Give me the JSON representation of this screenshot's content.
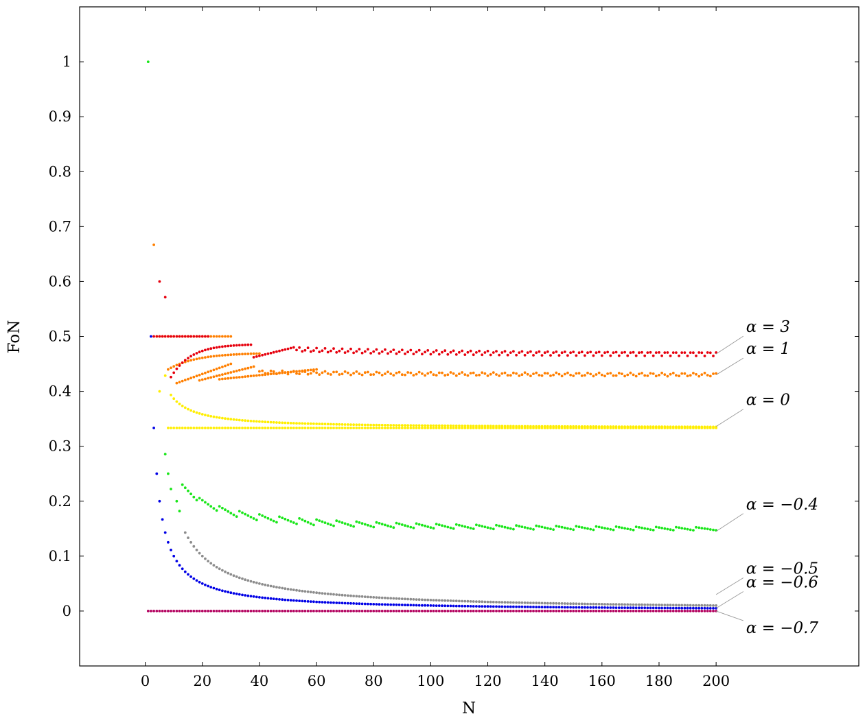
{
  "chart_data": {
    "type": "scatter",
    "xlabel": "N",
    "ylabel": "FoN",
    "xlim": [
      -23,
      250
    ],
    "ylim": [
      -0.1,
      1.1
    ],
    "xticks": [
      0,
      20,
      40,
      60,
      80,
      100,
      120,
      140,
      160,
      180,
      200
    ],
    "yticks": [
      0,
      0.1,
      0.2,
      0.3,
      0.4,
      0.5,
      0.6,
      0.7,
      0.8,
      0.9,
      1
    ],
    "x_range": [
      1,
      200
    ],
    "grid": false,
    "series": [
      {
        "color": "#e6000d",
        "end_value": 0.468,
        "points": [
          [
            5,
            0.6
          ],
          [
            7,
            0.571
          ],
          [
            3,
            0.5
          ],
          [
            5,
            0.5
          ],
          [
            10,
            0.5
          ],
          [
            15,
            0.5
          ],
          [
            20,
            0.5
          ],
          [
            22,
            0.5
          ],
          [
            17,
            0.47
          ],
          [
            37,
            0.486
          ],
          [
            38,
            0.462
          ],
          [
            52,
            0.48
          ],
          [
            53,
            0.464
          ],
          [
            100,
            0.47
          ],
          [
            150,
            0.469
          ],
          [
            200,
            0.468
          ]
        ]
      },
      {
        "color": "#ff7f00",
        "end_value": 0.43,
        "points": [
          [
            3,
            0.667
          ],
          [
            5,
            0.5
          ],
          [
            8,
            0.5
          ],
          [
            12,
            0.455
          ],
          [
            15,
            0.46
          ],
          [
            20,
            0.44
          ],
          [
            26,
            0.42
          ],
          [
            30,
            0.45
          ],
          [
            45,
            0.44
          ],
          [
            60,
            0.44
          ],
          [
            100,
            0.432
          ],
          [
            150,
            0.43
          ],
          [
            200,
            0.43
          ]
        ]
      },
      {
        "color": "#ffee00",
        "end_value": 0.336,
        "points": [
          [
            4,
            0.5
          ],
          [
            5,
            0.4
          ],
          [
            7,
            0.43
          ],
          [
            10,
            0.39
          ],
          [
            12,
            0.38
          ],
          [
            20,
            0.36
          ],
          [
            30,
            0.35
          ],
          [
            9,
            0.333
          ],
          [
            20,
            0.333
          ],
          [
            50,
            0.34
          ],
          [
            100,
            0.336
          ],
          [
            150,
            0.336
          ],
          [
            200,
            0.336
          ]
        ]
      },
      {
        "color": "#19e619",
        "end_value": 0.145,
        "points": [
          [
            1,
            1.0
          ],
          [
            7,
            0.286
          ],
          [
            8,
            0.25
          ],
          [
            9,
            0.222
          ],
          [
            13,
            0.231
          ],
          [
            19,
            0.2
          ],
          [
            26,
            0.185
          ],
          [
            33,
            0.152
          ],
          [
            40,
            0.175
          ],
          [
            60,
            0.165
          ],
          [
            100,
            0.155
          ],
          [
            150,
            0.15
          ],
          [
            200,
            0.145
          ]
        ]
      },
      {
        "color": "#8c8c8c",
        "end_value": 0.03,
        "points": [
          [
            14,
            0.143
          ],
          [
            20,
            0.1
          ],
          [
            37,
            0.054
          ],
          [
            38,
            0.079
          ],
          [
            73,
            0.041
          ],
          [
            74,
            0.054
          ],
          [
            121,
            0.033
          ],
          [
            122,
            0.041
          ],
          [
            181,
            0.027
          ],
          [
            182,
            0.033
          ],
          [
            200,
            0.03
          ]
        ]
      },
      {
        "color": "#0000e6",
        "end_value": 0.005,
        "points": [
          [
            2,
            0.5
          ],
          [
            3,
            0.333
          ],
          [
            4,
            0.25
          ],
          [
            5,
            0.2
          ],
          [
            6,
            0.167
          ],
          [
            7,
            0.143
          ],
          [
            10,
            0.1
          ],
          [
            20,
            0.05
          ],
          [
            50,
            0.02
          ],
          [
            100,
            0.01
          ],
          [
            150,
            0.007
          ],
          [
            200,
            0.005
          ]
        ]
      },
      {
        "color": "#b3005e",
        "end_value": 0.0,
        "points": [
          [
            1,
            0.0
          ],
          [
            100,
            0.0
          ],
          [
            200,
            0.0
          ]
        ]
      }
    ],
    "annotations": [
      {
        "text": "α = 3",
        "series": 0
      },
      {
        "text": "α = 1",
        "series": 1
      },
      {
        "text": "α = 0",
        "series": 2
      },
      {
        "text": "α = −0.4",
        "series": 3
      },
      {
        "text": "α = −0.5",
        "series": 4
      },
      {
        "text": "α = −0.6",
        "series": 5
      },
      {
        "text": "α = −0.7",
        "series": 6
      }
    ]
  }
}
